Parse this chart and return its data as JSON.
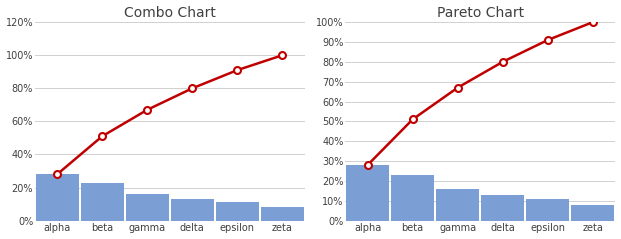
{
  "categories": [
    "alpha",
    "beta",
    "gamma",
    "delta",
    "epsilon",
    "zeta"
  ],
  "bar_values": [
    0.28,
    0.23,
    0.16,
    0.13,
    0.11,
    0.08
  ],
  "cumulative": [
    0.28,
    0.51,
    0.67,
    0.8,
    0.91,
    1.0
  ],
  "bar_color": "#7b9fd4",
  "line_color": "#c00000",
  "marker_face": "#ffffff",
  "marker_edge": "#c00000",
  "title_combo": "Combo Chart",
  "title_pareto": "Pareto Chart",
  "combo_ylim": [
    0,
    1.2
  ],
  "combo_yticks": [
    0,
    0.2,
    0.4,
    0.6,
    0.8,
    1.0,
    1.2
  ],
  "pareto_ylim": [
    0,
    1.0
  ],
  "pareto_yticks": [
    0,
    0.1,
    0.2,
    0.3,
    0.4,
    0.5,
    0.6,
    0.7,
    0.8,
    0.9,
    1.0
  ],
  "background_color": "#ffffff",
  "grid_color": "#d0d0d0",
  "title_fontsize": 10,
  "tick_fontsize": 7,
  "bar_width": 0.95
}
